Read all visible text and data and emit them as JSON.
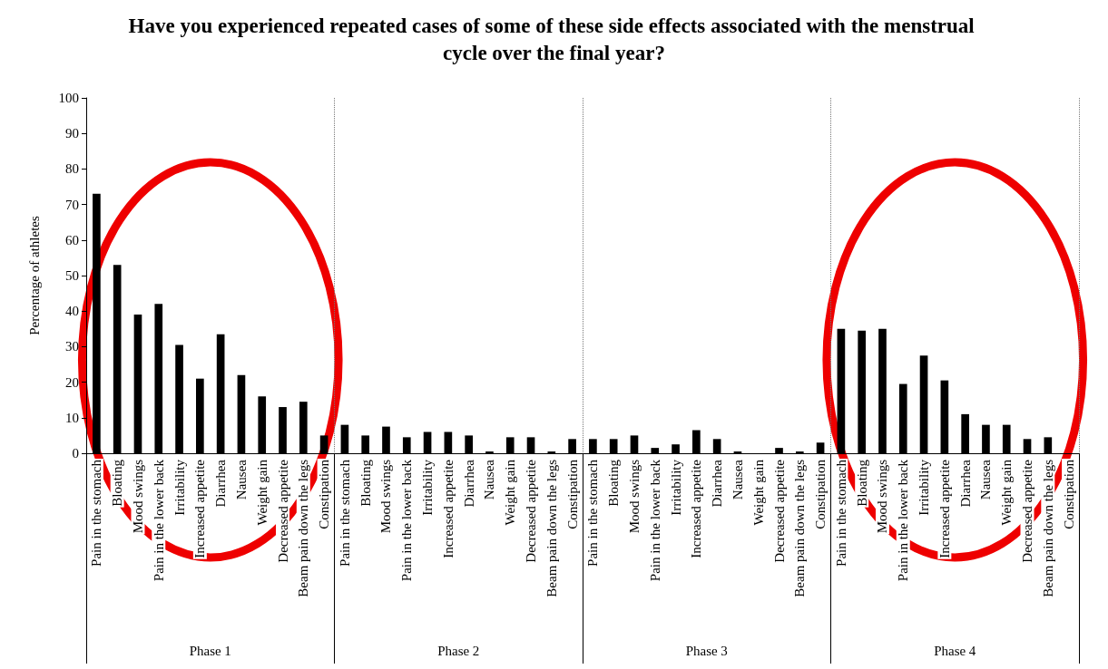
{
  "chart_data": {
    "type": "bar",
    "title": "Have you experienced repeated cases of some of these side effects associated with the menstrual cycle over the final year?",
    "ylabel": "Percentage of athletes",
    "categories": [
      "Pain in the stomach",
      "Bloating",
      "Mood swings",
      "Pain in the lower back",
      "Irritability",
      "Increased appetite",
      "Diarrhea",
      "Nausea",
      "Weight gain",
      "Decreased appetite",
      "Beam pain down the legs",
      "Constipation",
      "Pain in the stomach",
      "Bloating",
      "Mood swings",
      "Pain in the lower back",
      "Irritability",
      "Increased appetite",
      "Diarrhea",
      "Nausea",
      "Weight gain",
      "Decreased appetite",
      "Beam pain down the legs",
      "Constipation",
      "Pain in the stomach",
      "Bloating",
      "Mood swings",
      "Pain in the lower back",
      "Irritability",
      "Increased appetite",
      "Diarrhea",
      "Nausea",
      "Weight gain",
      "Decreased appetite",
      "Beam pain down the legs",
      "Constipation",
      "Pain in the stomach",
      "Bloating",
      "Mood swings",
      "Pain in the lower back",
      "Irritability",
      "Increased appetite",
      "Diarrhea",
      "Nausea",
      "Weight gain",
      "Decreased appetite",
      "Beam pain down the legs",
      "Constipation"
    ],
    "values": [
      73,
      53,
      39,
      42,
      30.5,
      21,
      33.5,
      22,
      16,
      13,
      14.5,
      5,
      8,
      5,
      7.5,
      4.5,
      6,
      6,
      5,
      0.5,
      4.5,
      4.5,
      0.5,
      4,
      4,
      4,
      5,
      1.5,
      2.5,
      6.5,
      4,
      0.5,
      0,
      1.5,
      0.5,
      3,
      35,
      34.5,
      35,
      19.5,
      27.5,
      20.5,
      11,
      8,
      8,
      4,
      4.5,
      0
    ],
    "color": "#000000",
    "annotations": [
      "Phase 1",
      "Phase 2",
      "Phase 3",
      "Phase 4"
    ],
    "ylim": [
      0,
      100
    ],
    "yticks": [
      0,
      10,
      20,
      30,
      40,
      50,
      60,
      70,
      80,
      90,
      100
    ],
    "grid": false
  }
}
